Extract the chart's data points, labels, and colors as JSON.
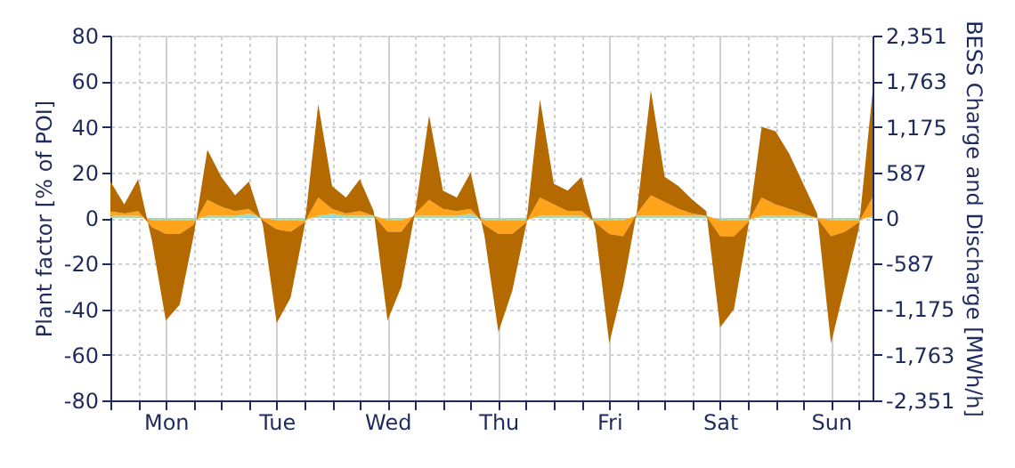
{
  "chart_data": {
    "type": "area",
    "stacked": true,
    "ylabel": "Plant factor [% of POI]",
    "y2label": "BESS Charge and Discharge [MWh/h]",
    "categories": [
      null,
      null,
      null,
      null,
      "Mon",
      null,
      null,
      null,
      null,
      null,
      null,
      null,
      "Tue",
      null,
      null,
      null,
      null,
      null,
      null,
      null,
      "Wed",
      null,
      null,
      null,
      null,
      null,
      null,
      null,
      "Thu",
      null,
      null,
      null,
      null,
      null,
      null,
      null,
      "Fri",
      null,
      null,
      null,
      null,
      null,
      null,
      null,
      "Sat",
      null,
      null,
      null,
      null,
      null,
      null,
      null,
      "Sun",
      null,
      null,
      null
    ],
    "ylim": [
      -80,
      80
    ],
    "yticks": [
      -80,
      -60,
      -40,
      -20,
      0,
      20,
      40,
      60,
      80
    ],
    "y2lim": [
      -2351,
      2351
    ],
    "y2ticks": [
      {
        "value": -2351,
        "label": "-2,351"
      },
      {
        "value": -1763,
        "label": "-1,763"
      },
      {
        "value": -1175,
        "label": "-1,175"
      },
      {
        "value": -587,
        "label": "-587"
      },
      0,
      587,
      {
        "value": 1175,
        "label": "1,175"
      },
      {
        "value": 1763,
        "label": "1,763"
      },
      {
        "value": 2351,
        "label": "2,351"
      }
    ],
    "grid": true,
    "legend": false,
    "series": [
      {
        "color": "#8fd3e8",
        "values": [
          0,
          0,
          0,
          0,
          0,
          0,
          0,
          0,
          0,
          0,
          1,
          0,
          0,
          0,
          0,
          0,
          1,
          0,
          0,
          0,
          0,
          0,
          0,
          0,
          0,
          0,
          1,
          0,
          0,
          0,
          0,
          0,
          0,
          0,
          0,
          0,
          0,
          0,
          0,
          0,
          0,
          0,
          0,
          0,
          0,
          0,
          0,
          0,
          0,
          0,
          0,
          0,
          0,
          0,
          0,
          0
        ]
      },
      {
        "color": "#a3d9b5",
        "values": [
          1,
          1,
          1,
          -1,
          -1,
          -1,
          -1,
          1,
          1,
          1,
          1,
          0,
          -1,
          -1,
          -1,
          1,
          1,
          1,
          1,
          1,
          -1,
          -1,
          1,
          1,
          1,
          1,
          1,
          -1,
          -1,
          -1,
          -1,
          1,
          1,
          1,
          1,
          -1,
          -1,
          -1,
          1,
          1,
          1,
          1,
          1,
          1,
          -1,
          -1,
          -1,
          1,
          1,
          1,
          1,
          0,
          -1,
          -1,
          -1,
          1
        ]
      },
      {
        "color": "#ffa31a",
        "values": [
          2,
          1,
          2,
          -3,
          -6,
          -6,
          -2,
          7,
          4,
          2,
          2,
          -1,
          -4,
          -5,
          -1,
          8,
          2,
          1,
          2,
          0,
          -5,
          -5,
          1,
          7,
          3,
          2,
          2,
          -2,
          -6,
          -6,
          -1,
          8,
          5,
          2,
          2,
          -1,
          -6,
          -7,
          1,
          9,
          6,
          3,
          1,
          0,
          -7,
          -7,
          -1,
          8,
          5,
          3,
          1,
          0,
          -7,
          -5,
          -1,
          8
        ]
      },
      {
        "color": "#b56a00",
        "values": [
          13,
          4,
          14,
          -6,
          -38,
          -31,
          -5,
          22,
          13,
          7,
          12,
          -2,
          -41,
          -29,
          -2,
          41,
          10,
          7,
          14,
          2,
          -39,
          -24,
          1,
          37,
          8,
          6,
          16,
          -5,
          -43,
          -25,
          -1,
          43,
          9,
          9,
          15,
          -3,
          -48,
          -22,
          1,
          46,
          11,
          10,
          6,
          2,
          -40,
          -32,
          -3,
          31,
          32,
          24,
          13,
          2,
          -47,
          -24,
          -3,
          46
        ]
      }
    ]
  }
}
